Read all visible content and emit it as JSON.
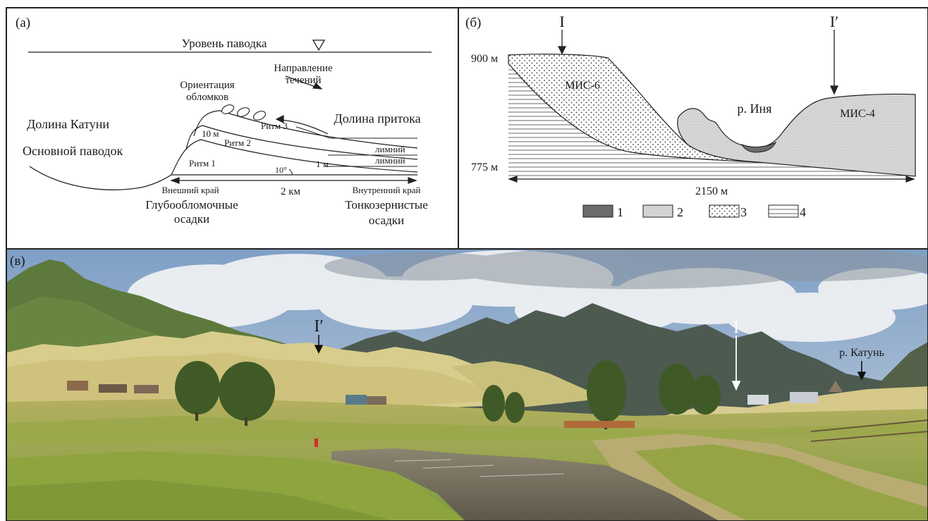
{
  "panel_a": {
    "label": "(а)",
    "flood_level": "Уровень паводка",
    "flow_direction_line1": "Направление",
    "flow_direction_line2": "течений",
    "clast_orientation_line1": "Ориентация",
    "clast_orientation_line2": "обломков",
    "tributary_valley": "Долина притока",
    "katun_valley": "Долина Катуни",
    "main_flood": "Основной паводок",
    "rhythm_1": "Ритм 1",
    "rhythm_2": "Ритм 2",
    "rhythm_3": "Ритм 3",
    "thickness_10m": "10 м",
    "thickness_1m": "1 м",
    "angle": "10°",
    "limnic_upper": "лимний",
    "limnic_lower": "лимний",
    "distance": "2 км",
    "outer_edge": "Внешний край",
    "inner_edge": "Внутренний край",
    "coarse_line1": "Глубообломочные",
    "coarse_line2": "осадки",
    "fine_line1": "Тонкозернистые",
    "fine_line2": "осадки"
  },
  "panel_b": {
    "label": "(б)",
    "marker_left": "I",
    "marker_right": "I′",
    "elev_top": "900 м",
    "elev_bottom": "775 м",
    "unit_mis6": "МИС-6",
    "unit_mis4": "МИС-4",
    "river": "р. Иня",
    "width": "2150 м",
    "legend": [
      {
        "number": "1",
        "fill": "#6b6b6b"
      },
      {
        "number": "2",
        "fill": "#d3d3d3"
      },
      {
        "number": "3",
        "fill": "dots"
      },
      {
        "number": "4",
        "fill": "lines"
      }
    ]
  },
  "panel_v": {
    "label": "(в)",
    "marker_right_profile": "I′",
    "marker_left_profile": "I",
    "katun_river": "р. Катунь",
    "colors": {
      "sky": "#8fb0d4",
      "cloud": "#e9ecef",
      "mountain_far": "#4e5a52",
      "mountain_green": "#5f7a3c",
      "terrace": "#d8cc8a",
      "meadow": "#8aa34a",
      "river": "#6f6a58"
    }
  }
}
